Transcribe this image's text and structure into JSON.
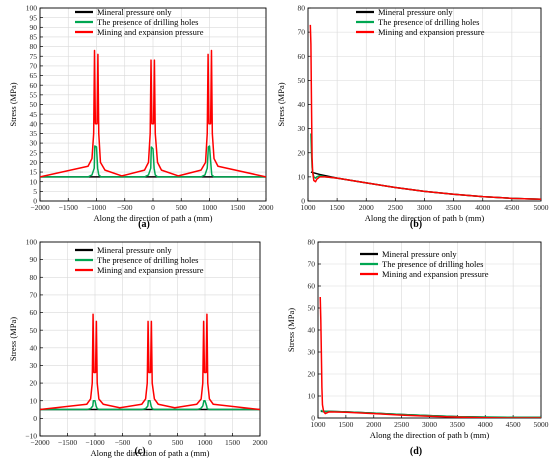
{
  "colors": {
    "mineral": "#000000",
    "drilling": "#00a651",
    "mining": "#ff0000",
    "grid": "#d9d9d9",
    "frame": "#000000"
  },
  "chart_data": [
    {
      "id": "a",
      "type": "line",
      "caption": "(a)",
      "xlabel": "Along the direction of path a  (mm)",
      "ylabel": "Stress  (MPa)",
      "xlim": [
        -2000,
        2000
      ],
      "ylim": [
        0,
        100
      ],
      "xticks": [
        -2000,
        -1500,
        -1000,
        -500,
        0,
        500,
        1000,
        1500,
        2000
      ],
      "xtick_labels": [
        "−2000",
        "−1500",
        "−1000",
        "−500",
        "0",
        "500",
        "1000",
        "1500",
        "2000"
      ],
      "yticks": [
        0,
        5,
        10,
        15,
        20,
        25,
        30,
        35,
        40,
        45,
        50,
        55,
        60,
        65,
        70,
        75,
        80,
        85,
        90,
        95,
        100
      ],
      "grid": true,
      "legend_position": "top-center",
      "series": [
        {
          "name": "Mineral pressure only",
          "color_key": "mineral",
          "x": [
            -2000,
            2000
          ],
          "y": [
            12.5,
            12.5
          ]
        },
        {
          "name": "The presence of drilling holes",
          "color_key": "drilling",
          "x": [
            -2000,
            -1150,
            -1080,
            -1040,
            -1030,
            -1000,
            -980,
            -960,
            -920,
            -850,
            -150,
            -80,
            -40,
            -30,
            0,
            20,
            40,
            80,
            150,
            850,
            920,
            960,
            980,
            1000,
            1030,
            1040,
            1080,
            1150,
            2000
          ],
          "y": [
            12.5,
            12.5,
            13.5,
            17,
            28.5,
            28,
            17,
            13.5,
            12.5,
            12.5,
            12.5,
            13.5,
            17,
            28,
            27,
            17,
            13.5,
            12.5,
            12.5,
            12.5,
            13.5,
            17,
            28,
            28.5,
            17,
            13.5,
            12.5,
            12.5,
            12.5
          ]
        },
        {
          "name": "Mining and expansion pressure",
          "color_key": "mining",
          "x": [
            -2000,
            -1150,
            -1080,
            -1050,
            -1035,
            -1020,
            -990,
            -975,
            -960,
            -930,
            -850,
            -550,
            -150,
            -80,
            -50,
            -35,
            -20,
            10,
            25,
            40,
            80,
            150,
            450,
            850,
            930,
            960,
            975,
            990,
            1020,
            1035,
            1050,
            1080,
            1150,
            2000
          ],
          "y": [
            12.5,
            18,
            22,
            35,
            78,
            40,
            40,
            76,
            35,
            20,
            16,
            13,
            16,
            20,
            35,
            73,
            40,
            40,
            73,
            35,
            20,
            16,
            13,
            16,
            20,
            35,
            76,
            40,
            40,
            78,
            35,
            22,
            18,
            12.5
          ]
        }
      ]
    },
    {
      "id": "b",
      "type": "line",
      "caption": "(b)",
      "xlabel": "Along the direction of path b  (mm)",
      "ylabel": "Stress  (MPa)",
      "xlim": [
        1000,
        5000
      ],
      "ylim": [
        0,
        80
      ],
      "xticks": [
        1000,
        1500,
        2000,
        2500,
        3000,
        3500,
        4000,
        4500,
        5000
      ],
      "xtick_labels": [
        "1000",
        "1500",
        "2000",
        "2500",
        "3000",
        "3500",
        "4000",
        "4500",
        "5000"
      ],
      "yticks": [
        0,
        10,
        20,
        30,
        40,
        50,
        60,
        70,
        80
      ],
      "grid": true,
      "legend_position": "top-right",
      "series": [
        {
          "name": "Mineral pressure only",
          "color_key": "mineral",
          "x": [
            1050,
            1200,
            1500,
            2000,
            2500,
            3000,
            3500,
            4000,
            4500,
            5000
          ],
          "y": [
            12,
            11,
            9.5,
            7.5,
            5.6,
            4,
            2.8,
            1.8,
            1.1,
            0.7
          ]
        },
        {
          "name": "The presence of drilling holes",
          "color_key": "drilling",
          "x": [
            1050,
            1060,
            1070,
            1080,
            1100,
            1130,
            1150,
            1200,
            1300,
            1500,
            2000,
            2500,
            3000,
            3500,
            4000,
            4500,
            5000
          ],
          "y": [
            28,
            20,
            14,
            12,
            10,
            9.5,
            10,
            10.5,
            10,
            9.5,
            7.5,
            5.6,
            4,
            2.8,
            1.8,
            1.1,
            0.7
          ]
        },
        {
          "name": "Mining and expansion pressure",
          "color_key": "mining",
          "x": [
            1040,
            1050,
            1060,
            1070,
            1080,
            1100,
            1130,
            1150,
            1200,
            1300,
            1500,
            2000,
            2500,
            3000,
            3500,
            4000,
            4500,
            5000
          ],
          "y": [
            73,
            65,
            40,
            18,
            12,
            8.5,
            8,
            9,
            10,
            10,
            9.5,
            7.5,
            5.6,
            4,
            2.8,
            1.8,
            1.1,
            0.7
          ]
        }
      ]
    },
    {
      "id": "c",
      "type": "line",
      "caption": "(c)",
      "xlabel": "Along the direction of path a  (mm)",
      "ylabel": "Stress  (MPa)",
      "xlim": [
        -2000,
        2000
      ],
      "ylim": [
        -10,
        100
      ],
      "xticks": [
        -2000,
        -1500,
        -1000,
        -500,
        0,
        500,
        1000,
        1500,
        2000
      ],
      "xtick_labels": [
        "−2000",
        "−1500",
        "−1000",
        "−500",
        "0",
        "500",
        "1000",
        "1500",
        "2000"
      ],
      "yticks": [
        -10,
        0,
        10,
        20,
        30,
        40,
        50,
        60,
        70,
        80,
        90,
        100
      ],
      "ytick_labels": [
        "−10",
        "0",
        "10",
        "20",
        "30",
        "40",
        "50",
        "60",
        "70",
        "80",
        "90",
        "100"
      ],
      "grid": true,
      "legend_position": "top-center",
      "series": [
        {
          "name": "Mineral pressure only",
          "color_key": "mineral",
          "x": [
            -2000,
            2000
          ],
          "y": [
            5,
            5
          ]
        },
        {
          "name": "The presence of drilling holes",
          "color_key": "drilling",
          "x": [
            -2000,
            -1150,
            -1080,
            -1040,
            -1030,
            -1000,
            -980,
            -960,
            -920,
            -850,
            -150,
            -80,
            -40,
            -30,
            0,
            20,
            40,
            80,
            150,
            850,
            920,
            960,
            980,
            1000,
            1030,
            1040,
            1080,
            1150,
            2000
          ],
          "y": [
            5,
            5,
            5.5,
            7,
            10,
            10,
            7,
            5.5,
            5,
            5,
            5,
            5.5,
            7,
            10,
            10,
            7,
            5.5,
            5,
            5,
            5,
            5.5,
            7,
            10,
            10,
            7,
            5.5,
            5,
            5,
            5
          ]
        },
        {
          "name": "Mining and expansion pressure",
          "color_key": "mining",
          "x": [
            -2000,
            -1150,
            -1080,
            -1050,
            -1035,
            -1020,
            -990,
            -975,
            -960,
            -930,
            -850,
            -550,
            -150,
            -80,
            -50,
            -35,
            -20,
            10,
            25,
            40,
            80,
            150,
            450,
            850,
            930,
            960,
            975,
            990,
            1020,
            1035,
            1050,
            1080,
            1150,
            2000
          ],
          "y": [
            5,
            8,
            11,
            20,
            59,
            26,
            26,
            55,
            20,
            11,
            8,
            6,
            8,
            11,
            20,
            55,
            26,
            26,
            55,
            20,
            11,
            8,
            6,
            8,
            11,
            20,
            55,
            26,
            26,
            59,
            20,
            11,
            8,
            5
          ]
        }
      ]
    },
    {
      "id": "d",
      "type": "line",
      "caption": "(d)",
      "xlabel": "Along the direction of path b  (mm)",
      "ylabel": "Stress  (MPa)",
      "xlim": [
        1000,
        5000
      ],
      "ylim": [
        0,
        80
      ],
      "xticks": [
        1000,
        1500,
        2000,
        2500,
        3000,
        3500,
        4000,
        4500,
        5000
      ],
      "xtick_labels": [
        "1000",
        "1500",
        "2000",
        "2500",
        "3000",
        "3500",
        "4000",
        "4500",
        "5000"
      ],
      "yticks": [
        0,
        10,
        20,
        30,
        40,
        50,
        60,
        70,
        80
      ],
      "grid": true,
      "legend_position": "top-right",
      "series": [
        {
          "name": "Mineral pressure only",
          "color_key": "mineral",
          "x": [
            1050,
            1200,
            1500,
            2000,
            2500,
            3000,
            3500,
            4000,
            4500,
            5000
          ],
          "y": [
            3,
            3,
            2.8,
            2.2,
            1.6,
            1.1,
            0.6,
            0.4,
            0.3,
            0.3
          ]
        },
        {
          "name": "The presence of drilling holes",
          "color_key": "drilling",
          "x": [
            1050,
            1080,
            1100,
            1150,
            1200,
            1500,
            2000,
            2500,
            3000,
            3500,
            4000,
            4500,
            5000
          ],
          "y": [
            3.5,
            3,
            2.8,
            3,
            3,
            2.8,
            2.2,
            1.6,
            1.1,
            0.6,
            0.4,
            0.3,
            0.3
          ]
        },
        {
          "name": "Mining and expansion pressure",
          "color_key": "mining",
          "x": [
            1040,
            1050,
            1060,
            1070,
            1080,
            1100,
            1130,
            1200,
            1500,
            2000,
            2500,
            3000,
            3500,
            4000,
            4500,
            5000
          ],
          "y": [
            55,
            45,
            30,
            14,
            6,
            3,
            2,
            2.8,
            2.6,
            2,
            1.3,
            0.8,
            0.4,
            0.1,
            0,
            0
          ]
        }
      ]
    }
  ]
}
